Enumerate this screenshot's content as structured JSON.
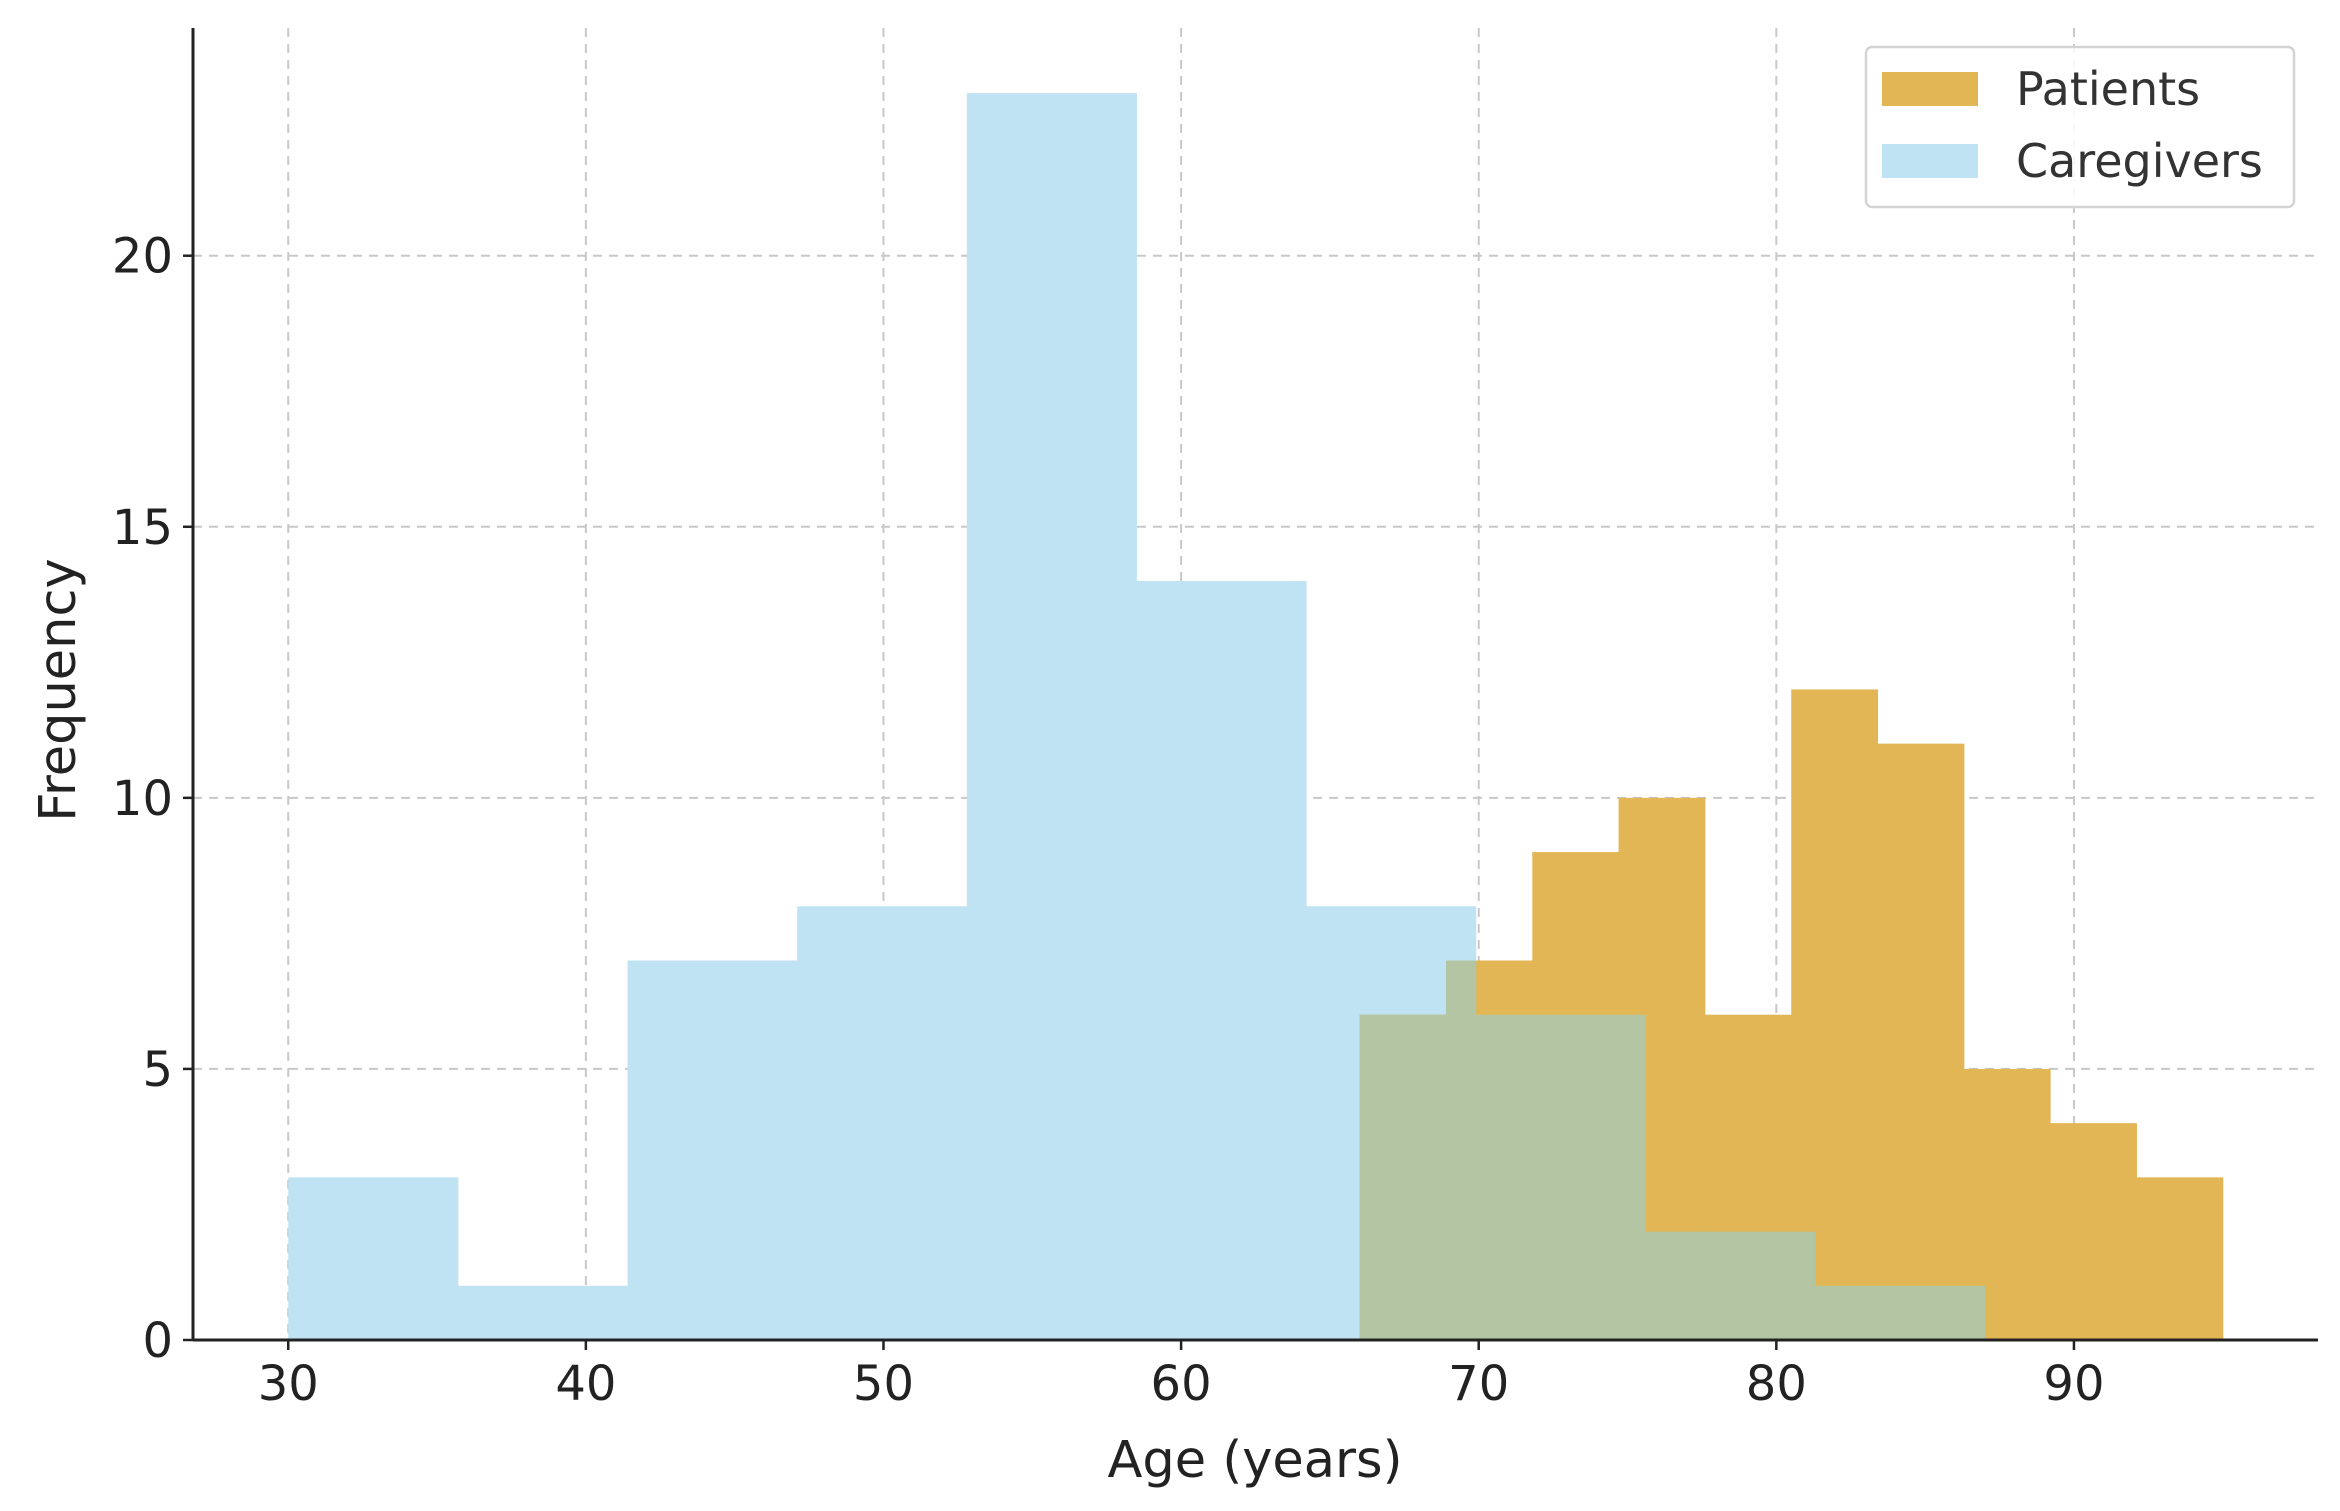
{
  "chart_data": {
    "type": "histogram",
    "xlabel": "Age (years)",
    "ylabel": "Frequency",
    "xlim": [
      26.8,
      98.2
    ],
    "ylim": [
      0,
      24.2
    ],
    "x_ticks": [
      30,
      40,
      50,
      60,
      70,
      80,
      90
    ],
    "y_ticks": [
      0,
      5,
      10,
      15,
      20
    ],
    "grid": true,
    "legend_position": "top-right",
    "series": [
      {
        "name": "Caregivers",
        "color": "#bfe3f3",
        "bins": [
          {
            "x0": 30.0,
            "x1": 35.7,
            "count": 3
          },
          {
            "x0": 35.7,
            "x1": 41.4,
            "count": 1
          },
          {
            "x0": 41.4,
            "x1": 47.1,
            "count": 7
          },
          {
            "x0": 47.1,
            "x1": 52.8,
            "count": 8
          },
          {
            "x0": 52.8,
            "x1": 58.5,
            "count": 23
          },
          {
            "x0": 58.5,
            "x1": 64.2,
            "count": 14
          },
          {
            "x0": 64.2,
            "x1": 69.9,
            "count": 8
          },
          {
            "x0": 69.9,
            "x1": 75.6,
            "count": 6
          },
          {
            "x0": 75.6,
            "x1": 81.3,
            "count": 2
          },
          {
            "x0": 81.3,
            "x1": 87.0,
            "count": 1
          }
        ]
      },
      {
        "name": "Patients",
        "color": "#e2b654",
        "bins": [
          {
            "x0": 66.0,
            "x1": 68.9,
            "count": 6
          },
          {
            "x0": 68.9,
            "x1": 71.8,
            "count": 7
          },
          {
            "x0": 71.8,
            "x1": 74.7,
            "count": 9
          },
          {
            "x0": 74.7,
            "x1": 77.6,
            "count": 10
          },
          {
            "x0": 77.6,
            "x1": 80.5,
            "count": 6
          },
          {
            "x0": 80.5,
            "x1": 83.4,
            "count": 12
          },
          {
            "x0": 83.4,
            "x1": 86.3,
            "count": 11
          },
          {
            "x0": 86.3,
            "x1": 89.2,
            "count": 5
          },
          {
            "x0": 89.2,
            "x1": 92.1,
            "count": 4
          },
          {
            "x0": 92.1,
            "x1": 95.0,
            "count": 3
          }
        ]
      }
    ],
    "overlap_color": "#b3c5a2",
    "legend": [
      {
        "label": "Patients",
        "color": "#e2b654"
      },
      {
        "label": "Caregivers",
        "color": "#bfe3f3"
      }
    ]
  }
}
